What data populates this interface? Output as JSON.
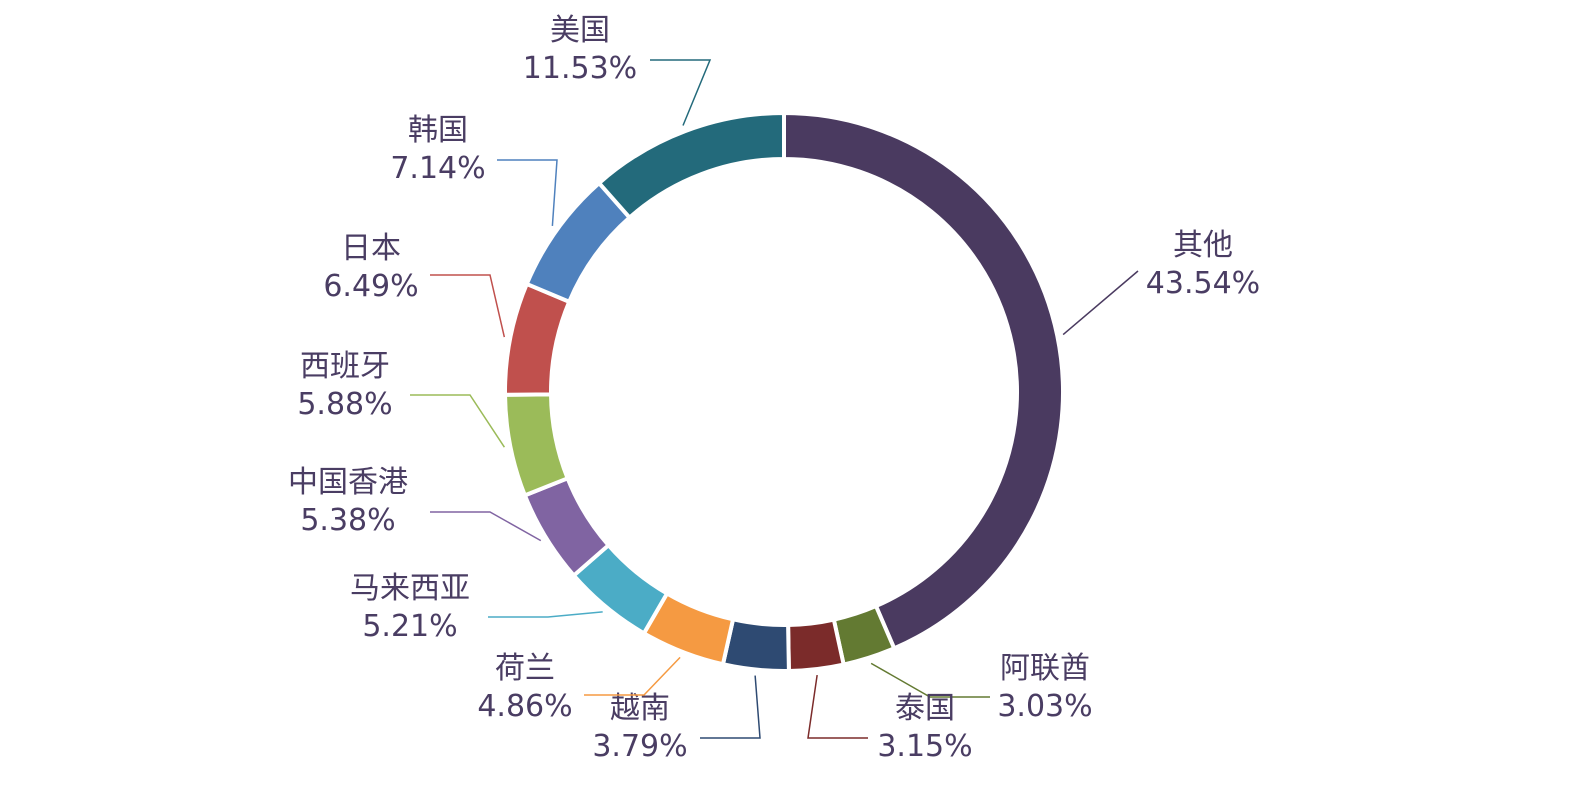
{
  "chart_data": {
    "type": "pie",
    "variant": "donut",
    "categories": [
      "其他",
      "阿联酋",
      "泰国",
      "越南",
      "荷兰",
      "马来西亚",
      "中国香港",
      "西班牙",
      "日本",
      "韩国",
      "美国"
    ],
    "values": [
      43.54,
      3.03,
      3.15,
      3.79,
      4.86,
      5.21,
      5.38,
      5.88,
      6.49,
      7.14,
      11.53
    ],
    "value_labels": [
      "43.54%",
      "3.03%",
      "3.15%",
      "3.79%",
      "4.86%",
      "5.21%",
      "5.38%",
      "5.88%",
      "6.49%",
      "7.14%",
      "11.53%"
    ],
    "colors": [
      "#4a3a60",
      "#637a32",
      "#7b2b2a",
      "#2e4a72",
      "#f59a42",
      "#4bacc6",
      "#8064a2",
      "#9bbb59",
      "#c0504d",
      "#4f81bd",
      "#236a7b"
    ],
    "start": "12 o'clock",
    "direction": "clockwise",
    "legend": "none",
    "label_color": "#4a3d63"
  }
}
